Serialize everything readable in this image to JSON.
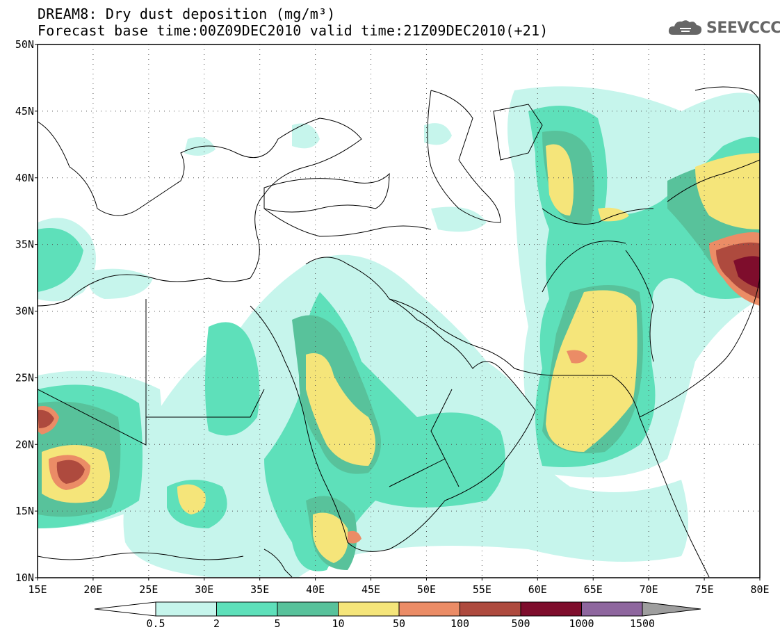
{
  "header": {
    "title": "DREAM8: Dry dust deposition (mg/m³)",
    "subtitle": "Forecast base time:00Z09DEC2010 valid time:21Z09DEC2010(+21)",
    "logo_text": "SEEVCCC"
  },
  "map": {
    "lon_range": [
      15,
      80
    ],
    "lat_range": [
      10,
      50
    ],
    "lon_labels": [
      "15E",
      "20E",
      "25E",
      "30E",
      "35E",
      "40E",
      "45E",
      "50E",
      "55E",
      "60E",
      "65E",
      "70E",
      "75E",
      "80E"
    ],
    "lat_labels": [
      "10N",
      "15N",
      "20N",
      "25N",
      "30N",
      "35N",
      "40N",
      "45N",
      "50N"
    ],
    "grid": "dotted"
  },
  "legend": {
    "placement": "bottom",
    "bins": [
      {
        "color": "#c6f5ec"
      },
      {
        "color": "#5ee0ba"
      },
      {
        "color": "#58c29b"
      },
      {
        "color": "#f5e57a"
      },
      {
        "color": "#eb8c66"
      },
      {
        "color": "#ae4a3e"
      },
      {
        "color": "#7e0d2c"
      },
      {
        "color": "#8e669e"
      }
    ],
    "labels": [
      "0.5",
      "2",
      "5",
      "10",
      "50",
      "100",
      "500",
      "1000",
      "1500"
    ],
    "under_color": "#ffffff",
    "over_color": "#9e9e9e"
  }
}
